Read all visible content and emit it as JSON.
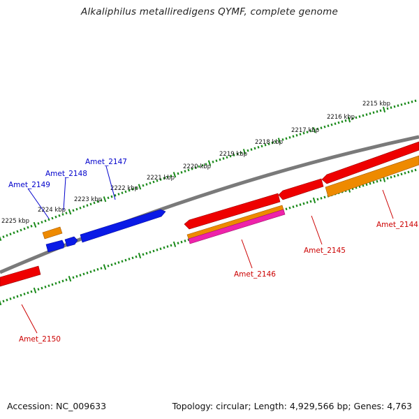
{
  "title": "Alkaliphilus metalliredigens QYMF, complete genome",
  "footer": {
    "accession": "Accession: NC_009633",
    "summary": "Topology: circular; Length: 4,929,566 bp; Genes: 4,763"
  },
  "colors": {
    "background": "#ffffff",
    "backbone": "#7a7a7a",
    "tick": "#1a8a1a",
    "tick_label": "#111111",
    "label_forward": "#0000cc",
    "label_reverse": "#cc0000",
    "blue_gene": "#0a1ae6",
    "red_gene": "#ee0000",
    "orange_gene": "#ee8a00",
    "magenta_gene": "#ee22aa"
  },
  "scale_labels": [
    "2215 kbp",
    "2216 kbp",
    "2217 kbp",
    "2218 kbp",
    "2219 kbp",
    "2220 kbp",
    "2221 kbp",
    "2222 kbp",
    "2223 kbp",
    "2224 kbp",
    "2225 kbp"
  ],
  "gene_labels": {
    "forward": [
      "Amet_2147",
      "Amet_2148",
      "Amet_2149"
    ],
    "reverse": [
      "Amet_2144",
      "Amet_2145",
      "Amet_2146",
      "Amet_2150"
    ]
  }
}
